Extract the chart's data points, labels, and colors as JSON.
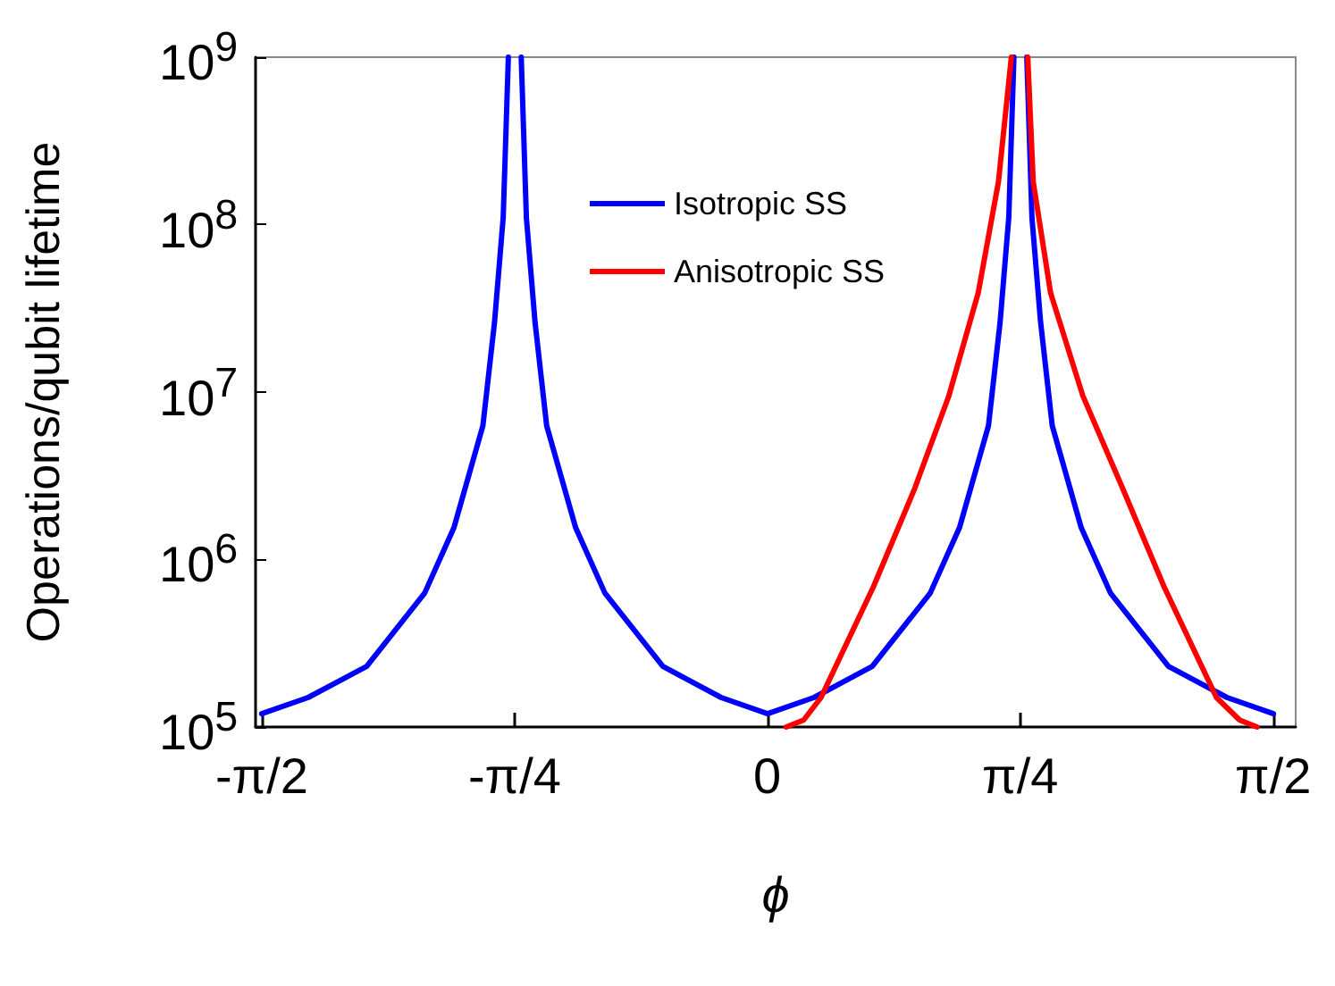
{
  "chart_data": {
    "type": "line",
    "xlabel": "ϕ",
    "ylabel": "Operations/qubit lifetime",
    "log": "y",
    "xlim": [
      -1.59,
      1.64
    ],
    "ylim": [
      100000,
      1000000000
    ],
    "xticks": [
      {
        "value": -1.5708,
        "label": "-π/2"
      },
      {
        "value": -0.7854,
        "label": "-π/4"
      },
      0,
      {
        "value": 0.7854,
        "label": "π/4"
      },
      {
        "value": 1.5708,
        "label": "π/2"
      }
    ],
    "yticks": [
      {
        "value": 100000,
        "label": "10$^{5}$"
      },
      {
        "value": 1000000,
        "label": "10$^{6}$"
      },
      {
        "value": 10000000,
        "label": "10$^{7}$"
      },
      {
        "value": 100000000,
        "label": "10$^{8}$"
      },
      {
        "value": 1000000000,
        "label": "10$^{9}$"
      }
    ],
    "grid": false,
    "legend": "top",
    "marker": "none",
    "line_style": "solid",
    "series": [
      {
        "name": "Isotropic SS",
        "color": "#0000ff",
        "x": [
          -1.571,
          -1.427,
          -1.245,
          -1.065,
          -0.974,
          -0.884,
          -0.848,
          -0.821,
          -0.805,
          -0.785,
          -0.765,
          -0.749,
          -0.722,
          -0.686,
          -0.596,
          -0.505,
          -0.325,
          -0.144,
          0,
          0.144,
          0.325,
          0.505,
          0.596,
          0.686,
          0.722,
          0.749,
          0.765,
          0.785,
          0.805,
          0.821,
          0.848,
          0.884,
          0.974,
          1.065,
          1.245,
          1.427,
          1.571
        ],
        "values": [
          120000,
          150000,
          230000,
          630000,
          1550000,
          6300000,
          26000000,
          110000000,
          1000000000,
          null,
          1000000000,
          110000000,
          26000000,
          6300000,
          1550000,
          630000,
          230000,
          150000,
          120000,
          150000,
          230000,
          630000,
          1550000,
          6300000,
          26000000,
          110000000,
          1000000000,
          null,
          1000000000,
          110000000,
          26000000,
          6300000,
          1550000,
          630000,
          230000,
          150000,
          120000
        ]
      },
      {
        "name": "Anisotropic SS",
        "color": "#ff0000",
        "x": [
          0.058,
          0.112,
          0.166,
          0.329,
          0.455,
          0.563,
          0.654,
          0.717,
          0.757,
          0.785,
          0.808,
          0.825,
          0.879,
          0.979,
          1.105,
          1.231,
          1.394,
          1.466,
          1.52
        ],
        "values": [
          100000,
          110000,
          150000,
          690000,
          2600000,
          9500000,
          39000000,
          180000000,
          1000000000,
          null,
          1000000000,
          180000000,
          39000000,
          9500000,
          2600000,
          690000,
          150000,
          110000,
          100000
        ]
      }
    ]
  }
}
